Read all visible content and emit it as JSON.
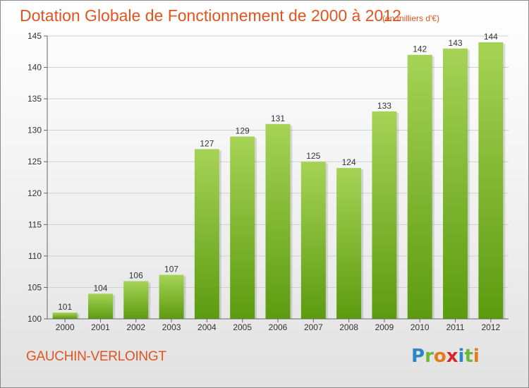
{
  "title": "Dotation Globale de Fonctionnement de 2000 à 2012",
  "unit_note": "(en milliers d'€)",
  "place_name": "GAUCHIN-VERLOINGT",
  "logo": {
    "letters": [
      "P",
      "r",
      "o",
      "x",
      "i",
      "t",
      "i"
    ],
    "colors": [
      "#2c86c8",
      "#6db83a",
      "#e37b1c",
      "#d9262c",
      "#2c86c8",
      "#6db83a",
      "#e37b1c"
    ]
  },
  "colors": {
    "bar_light": "#a6d356",
    "bar_dark": "#5c9b10",
    "title": "#e0551f"
  },
  "chart_data": {
    "type": "bar",
    "title": "Dotation Globale de Fonctionnement de 2000 à 2012",
    "subtitle": "(en milliers d'€)",
    "categories": [
      "2000",
      "2001",
      "2002",
      "2003",
      "2004",
      "2005",
      "2006",
      "2007",
      "2008",
      "2009",
      "2010",
      "2011",
      "2012"
    ],
    "values": [
      101,
      104,
      106,
      107,
      127,
      129,
      131,
      125,
      124,
      133,
      142,
      143,
      144
    ],
    "ylim": [
      100,
      145
    ],
    "yticks": [
      100,
      105,
      110,
      115,
      120,
      125,
      130,
      135,
      140,
      145
    ],
    "grid": true,
    "xlabel": "",
    "ylabel": ""
  }
}
